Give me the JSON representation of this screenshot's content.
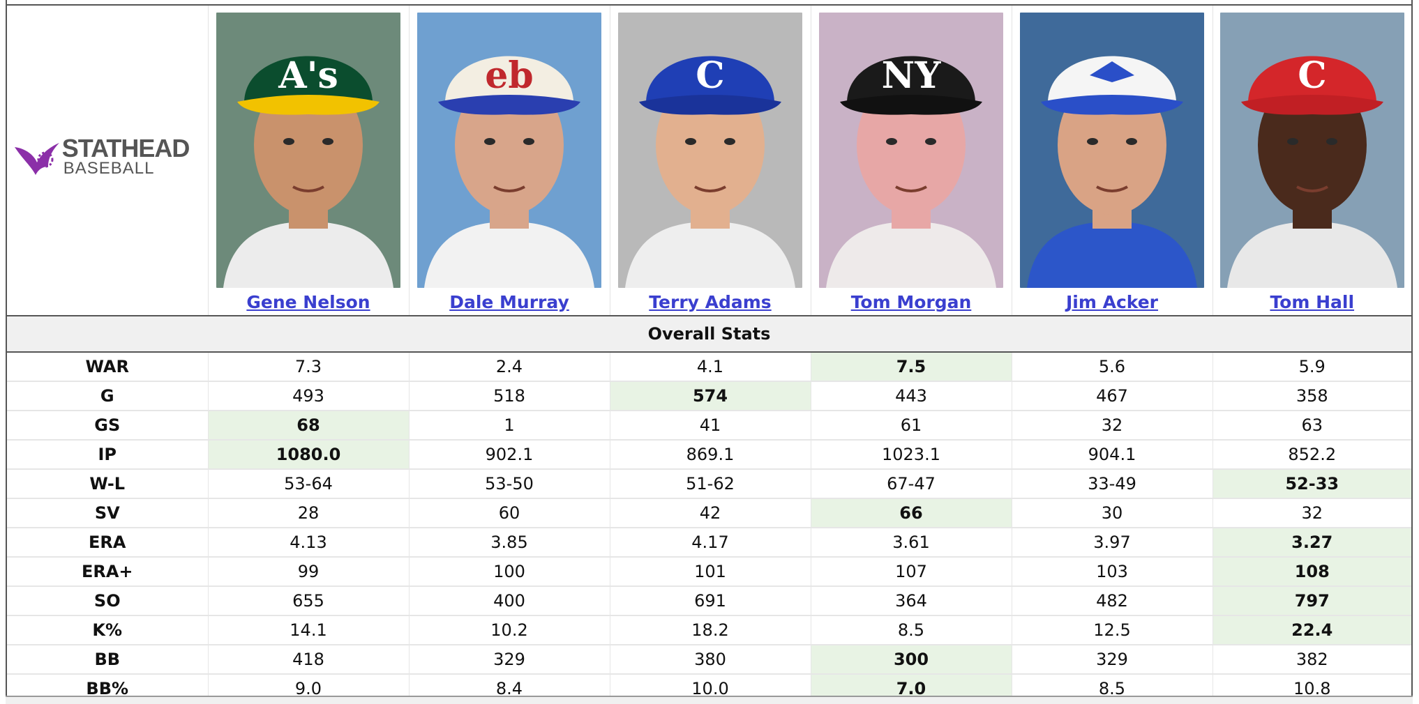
{
  "brand": {
    "line1": "STATHEAD",
    "line2": "BASEBALL",
    "accent": "#8b2fa8"
  },
  "players": [
    {
      "name": "Gene Nelson",
      "cap_letter": "A's",
      "cap_color": "#0b4d2e",
      "brim_color": "#f2c200",
      "bg": "#6d8a7a",
      "skin": "#c9926c",
      "shirt": "#ececec"
    },
    {
      "name": "Dale Murray",
      "cap_letter": "eb",
      "cap_color": "#f3eee2",
      "brim_color": "#2a3fb0",
      "bg": "#6fa0d0",
      "skin": "#d8a58a",
      "shirt": "#f2f2f2"
    },
    {
      "name": "Terry Adams",
      "cap_letter": "C",
      "cap_color": "#1f3fb5",
      "brim_color": "#1a339a",
      "bg": "#b9b9b9",
      "skin": "#e2b08f",
      "shirt": "#eeeeee"
    },
    {
      "name": "Tom Morgan",
      "cap_letter": "NY",
      "cap_color": "#1a1a1a",
      "brim_color": "#111111",
      "bg": "#c9b2c6",
      "skin": "#e7a7a6",
      "shirt": "#eeeaea"
    },
    {
      "name": "Jim Acker",
      "cap_letter": "",
      "cap_color": "#f5f5f5",
      "brim_color": "#2a4fc8",
      "bg": "#3f6a9a",
      "skin": "#d9a385",
      "shirt": "#2c56c9"
    },
    {
      "name": "Tom Hall",
      "cap_letter": "C",
      "cap_color": "#d4262a",
      "brim_color": "#c11f24",
      "bg": "#86a0b5",
      "skin": "#4a2a1c",
      "shirt": "#e8e8e8"
    }
  ],
  "section_title": "Overall Stats",
  "stats": [
    {
      "label": "WAR",
      "values": [
        "7.3",
        "2.4",
        "4.1",
        "7.5",
        "5.6",
        "5.9"
      ],
      "best": 3
    },
    {
      "label": "G",
      "values": [
        "493",
        "518",
        "574",
        "443",
        "467",
        "358"
      ],
      "best": 2
    },
    {
      "label": "GS",
      "values": [
        "68",
        "1",
        "41",
        "61",
        "32",
        "63"
      ],
      "best": 0
    },
    {
      "label": "IP",
      "values": [
        "1080.0",
        "902.1",
        "869.1",
        "1023.1",
        "904.1",
        "852.2"
      ],
      "best": 0
    },
    {
      "label": "W-L",
      "values": [
        "53-64",
        "53-50",
        "51-62",
        "67-47",
        "33-49",
        "52-33"
      ],
      "best": 5
    },
    {
      "label": "SV",
      "values": [
        "28",
        "60",
        "42",
        "66",
        "30",
        "32"
      ],
      "best": 3
    },
    {
      "label": "ERA",
      "values": [
        "4.13",
        "3.85",
        "4.17",
        "3.61",
        "3.97",
        "3.27"
      ],
      "best": 5
    },
    {
      "label": "ERA+",
      "values": [
        "99",
        "100",
        "101",
        "107",
        "103",
        "108"
      ],
      "best": 5
    },
    {
      "label": "SO",
      "values": [
        "655",
        "400",
        "691",
        "364",
        "482",
        "797"
      ],
      "best": 5
    },
    {
      "label": "K%",
      "values": [
        "14.1",
        "10.2",
        "18.2",
        "8.5",
        "12.5",
        "22.4"
      ],
      "best": 5
    },
    {
      "label": "BB",
      "values": [
        "418",
        "329",
        "380",
        "300",
        "329",
        "382"
      ],
      "best": 3
    },
    {
      "label": "BB%",
      "values": [
        "9.0",
        "8.4",
        "10.0",
        "7.0",
        "8.5",
        "10.8"
      ],
      "best": 3
    }
  ]
}
